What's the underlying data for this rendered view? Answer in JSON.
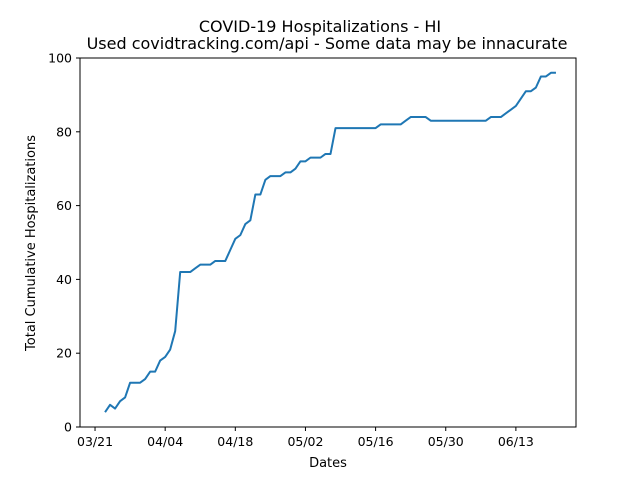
{
  "chart_data": {
    "type": "line",
    "title": "COVID-19 Hospitalizations - HI",
    "subtitle": "Used covidtracking.com/api - Some data may be innacurate",
    "xlabel": "Dates",
    "ylabel": "Total Cumulative Hospitalizations",
    "xlim": [
      "2020-03-18",
      "2020-06-25"
    ],
    "ylim": [
      0,
      100
    ],
    "x_ticks": [
      {
        "date": "2020-03-21",
        "label": "03/21"
      },
      {
        "date": "2020-04-04",
        "label": "04/04"
      },
      {
        "date": "2020-04-18",
        "label": "04/18"
      },
      {
        "date": "2020-05-02",
        "label": "05/02"
      },
      {
        "date": "2020-05-16",
        "label": "05/16"
      },
      {
        "date": "2020-05-30",
        "label": "05/30"
      },
      {
        "date": "2020-06-13",
        "label": "06/13"
      }
    ],
    "y_ticks": [
      0,
      20,
      40,
      60,
      80,
      100
    ],
    "grid": false,
    "color": "#1f77b4",
    "series": [
      {
        "x": [
          "2020-03-23",
          "2020-03-24",
          "2020-03-25",
          "2020-03-26",
          "2020-03-27",
          "2020-03-28",
          "2020-03-29",
          "2020-03-30",
          "2020-03-31",
          "2020-04-01",
          "2020-04-02",
          "2020-04-03",
          "2020-04-04",
          "2020-04-05",
          "2020-04-06",
          "2020-04-07",
          "2020-04-08",
          "2020-04-09",
          "2020-04-10",
          "2020-04-11",
          "2020-04-12",
          "2020-04-13",
          "2020-04-14",
          "2020-04-15",
          "2020-04-16",
          "2020-04-17",
          "2020-04-18",
          "2020-04-19",
          "2020-04-20",
          "2020-04-21",
          "2020-04-22",
          "2020-04-23",
          "2020-04-24",
          "2020-04-25",
          "2020-04-26",
          "2020-04-27",
          "2020-04-28",
          "2020-04-29",
          "2020-04-30",
          "2020-05-01",
          "2020-05-02",
          "2020-05-03",
          "2020-05-04",
          "2020-05-05",
          "2020-05-06",
          "2020-05-07",
          "2020-05-08",
          "2020-05-09",
          "2020-05-10",
          "2020-05-11",
          "2020-05-12",
          "2020-05-13",
          "2020-05-14",
          "2020-05-15",
          "2020-05-16",
          "2020-05-17",
          "2020-05-18",
          "2020-05-19",
          "2020-05-20",
          "2020-05-21",
          "2020-05-22",
          "2020-05-23",
          "2020-05-24",
          "2020-05-25",
          "2020-05-26",
          "2020-05-27",
          "2020-05-28",
          "2020-05-29",
          "2020-05-30",
          "2020-05-31",
          "2020-06-01",
          "2020-06-02",
          "2020-06-03",
          "2020-06-04",
          "2020-06-05",
          "2020-06-06",
          "2020-06-07",
          "2020-06-08",
          "2020-06-09",
          "2020-06-10",
          "2020-06-11",
          "2020-06-12",
          "2020-06-13",
          "2020-06-14",
          "2020-06-15",
          "2020-06-16",
          "2020-06-17",
          "2020-06-18",
          "2020-06-19",
          "2020-06-20",
          "2020-06-21"
        ],
        "y": [
          4,
          6,
          5,
          7,
          8,
          12,
          12,
          12,
          13,
          15,
          15,
          18,
          19,
          21,
          26,
          42,
          42,
          42,
          43,
          44,
          44,
          44,
          45,
          45,
          45,
          48,
          51,
          52,
          55,
          56,
          63,
          63,
          67,
          68,
          68,
          68,
          69,
          69,
          70,
          72,
          72,
          73,
          73,
          73,
          74,
          74,
          81,
          81,
          81,
          81,
          81,
          81,
          81,
          81,
          81,
          82,
          82,
          82,
          82,
          82,
          83,
          84,
          84,
          84,
          84,
          83,
          83,
          83,
          83,
          83,
          83,
          83,
          83,
          83,
          83,
          83,
          83,
          84,
          84,
          84,
          85,
          86,
          87,
          89,
          91,
          91,
          92,
          95,
          95,
          96,
          96
        ]
      }
    ]
  }
}
